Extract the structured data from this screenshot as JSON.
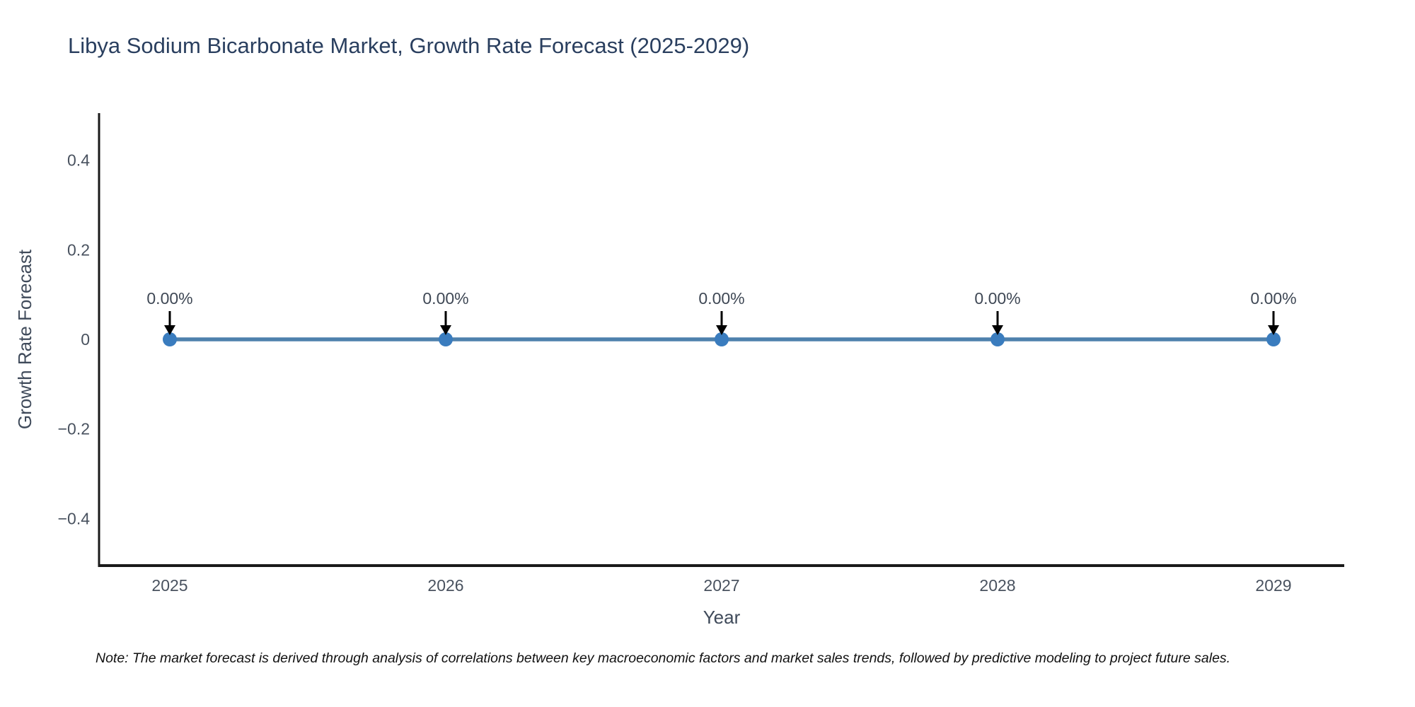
{
  "title": "Libya Sodium Bicarbonate Market, Growth Rate Forecast (2025-2029)",
  "note": "Note: The market forecast is derived through analysis of correlations between key macroeconomic factors and market sales trends, followed by predictive modeling to project future sales.",
  "chart_data": {
    "type": "line",
    "title": "Libya Sodium Bicarbonate Market, Growth Rate Forecast (2025-2029)",
    "xlabel": "Year",
    "ylabel": "Growth Rate Forecast",
    "x": [
      2025,
      2026,
      2027,
      2028,
      2029
    ],
    "xtick_labels": [
      "2025",
      "2026",
      "2027",
      "2028",
      "2029"
    ],
    "series": [
      {
        "name": "Growth Rate Forecast",
        "values": [
          0,
          0,
          0,
          0,
          0
        ]
      }
    ],
    "point_labels": [
      "0.00%",
      "0.00%",
      "0.00%",
      "0.00%",
      "0.00%"
    ],
    "ylim": [
      -0.505,
      0.505
    ],
    "yticks": [
      0.4,
      0.2,
      0,
      -0.2,
      -0.4
    ],
    "ytick_labels": [
      "0.4",
      "0.2",
      "0",
      "−0.2",
      "−0.4"
    ],
    "grid": false,
    "legend_position": "none",
    "colors": {
      "line": "#4e81ad",
      "marker": "#3a7cbe",
      "axis": "#1a1a1a",
      "annotation_arrow": "#000000",
      "title_text": "#2a3f5f",
      "tick_text": "#49525f"
    }
  }
}
